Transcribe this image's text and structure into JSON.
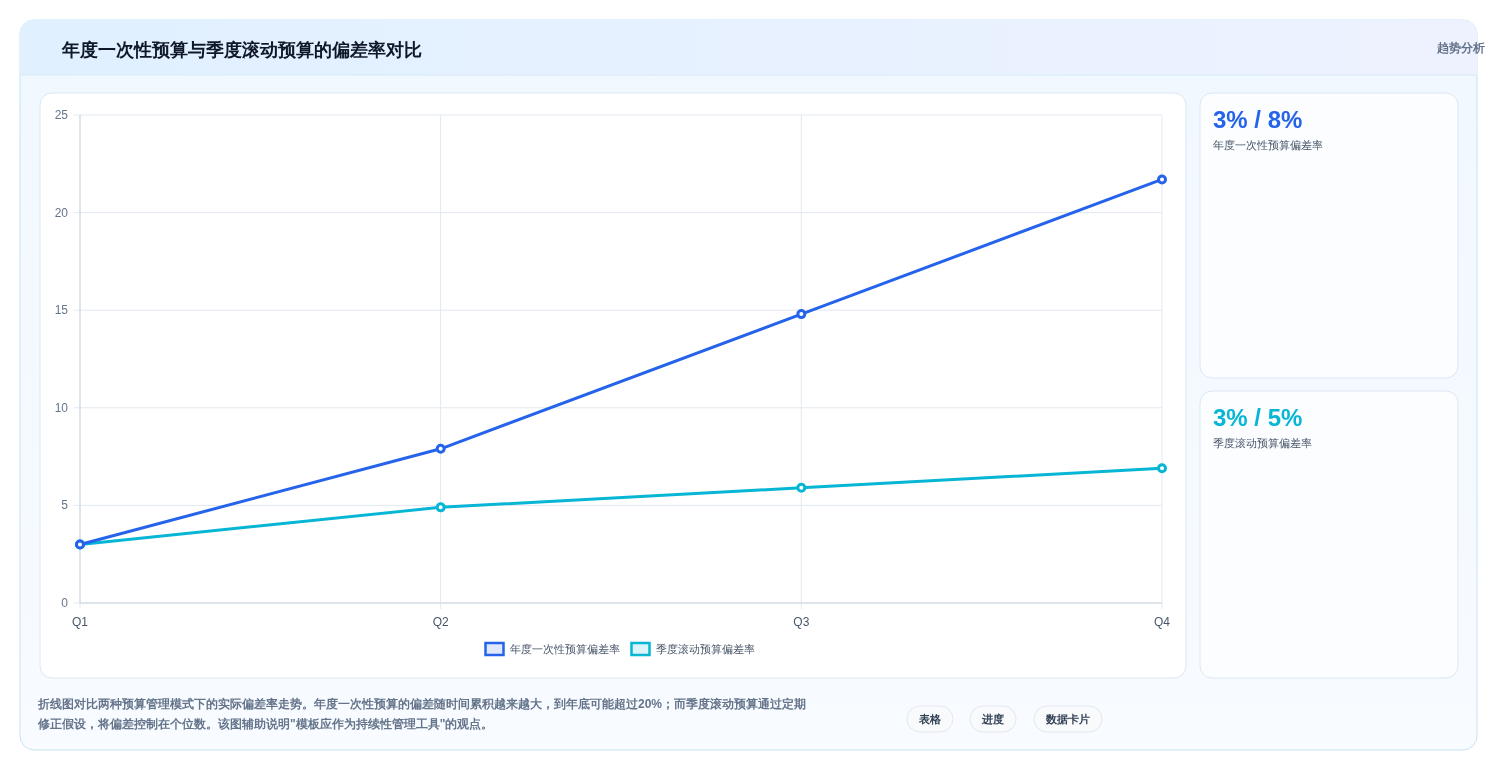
{
  "chart_data": [
    {
      "type": "line",
      "title": "年度一次性预算与季度滚动预算的偏差率对比",
      "categories": [
        "Q1",
        "Q2",
        "Q3",
        "Q4"
      ],
      "series": [
        {
          "name": "年度一次性预算偏差率",
          "color": "#2563eb",
          "values": [
            3,
            7.9,
            14.8,
            21.7
          ]
        },
        {
          "name": "季度滚动预算偏差率",
          "color": "#06b6d4",
          "values": [
            3,
            4.9,
            5.9,
            6.9
          ]
        }
      ],
      "ylim": [
        0,
        25
      ],
      "yticks": [
        0,
        5,
        10,
        15,
        20,
        25
      ],
      "grid": true,
      "legend": "bottom",
      "marker": "circle",
      "line_style": "solid",
      "annotations": [
        "趋势分析",
        "折线图对比两种预算管理模式下的实际偏差率走势。年度一次性预算的偏差随时间累积越来越大，到年底可能超过20%；而季度滚动预算通过定期修正假设，将偏差控制在个位数。该图辅助说明\"模板应作为持续性管理工具\"的观点。",
        "表格",
        "进度",
        "数据卡片"
      ]
    },
    {
      "type": "other",
      "title": "3% / 8%",
      "subtitle": "年度一次性预算偏差率"
    },
    {
      "type": "other",
      "title": "3% / 5%",
      "subtitle": "季度滚动预算偏差率"
    }
  ]
}
